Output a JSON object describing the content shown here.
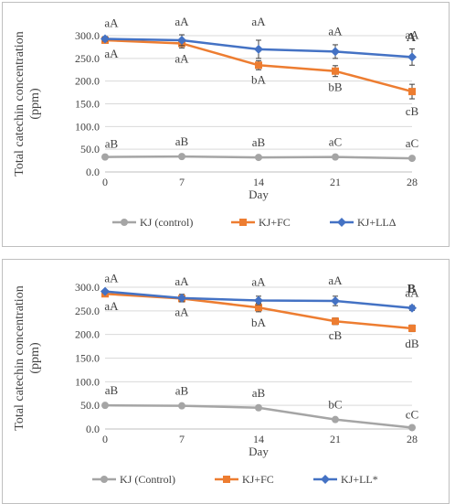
{
  "chart_data": [
    {
      "type": "line",
      "panel_label": "A",
      "xlabel": "Day",
      "ylabel": "Total catechin concentration (ppm)",
      "x": [
        0,
        7,
        14,
        21,
        28
      ],
      "ylim": [
        0,
        300
      ],
      "yticks": [
        "0.0",
        "50.0",
        "100.0",
        "150.0",
        "200.0",
        "250.0",
        "300.0"
      ],
      "grid": true,
      "legend_position": "bottom",
      "series": [
        {
          "name": "KJ (control)",
          "color": "#a5a5a5",
          "marker": "circle",
          "values": [
            33,
            34,
            32,
            33,
            30
          ],
          "errors": [
            2,
            2,
            2,
            3,
            3
          ],
          "labels": [
            "aB",
            "aB",
            "aB",
            "aC",
            "aC"
          ]
        },
        {
          "name": "KJ+FC",
          "color": "#ed7d31",
          "marker": "square",
          "values": [
            290,
            283,
            235,
            222,
            177
          ],
          "errors": [
            6,
            10,
            10,
            12,
            16
          ],
          "labels": [
            "aA",
            "aA",
            "bA",
            "bB",
            "cB"
          ]
        },
        {
          "name": "KJ+LLΔ",
          "color": "#4472c4",
          "marker": "diamond",
          "values": [
            293,
            290,
            270,
            265,
            253
          ],
          "errors": [
            5,
            12,
            20,
            15,
            18
          ],
          "labels": [
            "aA",
            "aA",
            "aA",
            "aA",
            "aA"
          ]
        }
      ]
    },
    {
      "type": "line",
      "panel_label": "B",
      "xlabel": "Day",
      "ylabel": "Total catechin concentration (ppm)",
      "x": [
        0,
        7,
        14,
        21,
        28
      ],
      "ylim": [
        0,
        300
      ],
      "yticks": [
        "0.0",
        "50.0",
        "100.0",
        "150.0",
        "200.0",
        "250.0",
        "300.0"
      ],
      "grid": true,
      "legend_position": "bottom",
      "series": [
        {
          "name": "KJ (Control)",
          "color": "#a5a5a5",
          "marker": "circle",
          "values": [
            50,
            49,
            45,
            20,
            3
          ],
          "errors": [
            1,
            1,
            2,
            2,
            1
          ],
          "labels": [
            "aB",
            "aB",
            "aB",
            "bC",
            "cC"
          ]
        },
        {
          "name": "KJ+FC",
          "color": "#ed7d31",
          "marker": "square",
          "values": [
            286,
            276,
            257,
            228,
            213
          ],
          "errors": [
            3,
            6,
            9,
            7,
            7
          ],
          "labels": [
            "aA",
            "aA",
            "bA",
            "cB",
            "dB"
          ]
        },
        {
          "name": "KJ+LL*",
          "color": "#4472c4",
          "marker": "diamond",
          "values": [
            291,
            277,
            272,
            271,
            256
          ],
          "errors": [
            3,
            8,
            9,
            10,
            5
          ],
          "labels": [
            "aA",
            "aA",
            "aA",
            "aA",
            "aA"
          ]
        }
      ]
    }
  ]
}
